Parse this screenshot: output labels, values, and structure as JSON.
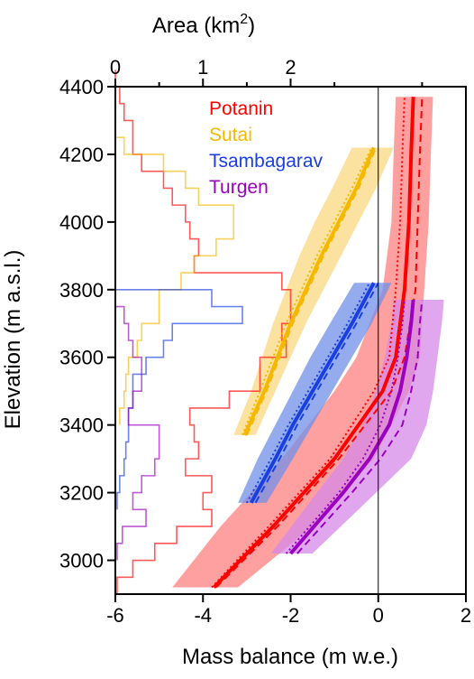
{
  "chart_data": {
    "type": "line",
    "title": "",
    "xlabel_bottom": "Mass balance (m w.e.)",
    "xlabel_top_text": "Area (km",
    "xlabel_top_sup": "2",
    "xlabel_top_close": ")",
    "ylabel": "Elevation (m a.s.l.)",
    "xlim_bottom": [
      -6,
      2
    ],
    "xlim_top": [
      0,
      4
    ],
    "ylim": [
      2900,
      4400
    ],
    "x_ticks_bottom": [
      -6,
      -4,
      -2,
      0,
      2
    ],
    "x_tick_labels_bottom": [
      "-6",
      "-4",
      "-2",
      "0",
      "2"
    ],
    "x_ticks_top": [
      0,
      1,
      2
    ],
    "x_tick_labels_top": [
      "0",
      "1",
      "2"
    ],
    "y_ticks": [
      3000,
      3200,
      3400,
      3600,
      3800,
      4000,
      4200,
      4400
    ],
    "y_tick_labels": [
      "3000",
      "3200",
      "3400",
      "3600",
      "3800",
      "4000",
      "4200",
      "4400"
    ],
    "zero_line_x": 0,
    "legend_position": "top-center",
    "series": [
      {
        "name": "Potanin",
        "color": "#ff0000",
        "band_color": "#ff8080",
        "elevation": [
          2920,
          3100,
          3300,
          3500,
          3600,
          3800,
          4000,
          4200,
          4370
        ],
        "mass_balance": [
          -3.75,
          -2.4,
          -1.0,
          0.1,
          0.4,
          0.6,
          0.7,
          0.75,
          0.8
        ],
        "band_lower": [
          -4.7,
          -3.6,
          -2.2,
          -1.0,
          -0.5,
          0.1,
          0.3,
          0.35,
          0.4
        ],
        "band_upper": [
          -3.2,
          -1.5,
          -0.1,
          0.7,
          0.95,
          1.05,
          1.15,
          1.2,
          1.25
        ],
        "dashed": [
          -3.7,
          -2.3,
          -0.9,
          0.3,
          0.6,
          0.85,
          0.9,
          0.95,
          1.0
        ],
        "dotted": [
          -3.8,
          -2.5,
          -1.1,
          -0.1,
          0.25,
          0.4,
          0.5,
          0.55,
          0.6
        ],
        "area_elevation": [
          2900,
          2950,
          3000,
          3050,
          3100,
          3150,
          3200,
          3250,
          3300,
          3350,
          3400,
          3450,
          3500,
          3550,
          3600,
          3650,
          3700,
          3750,
          3800,
          3850,
          3900,
          3950,
          4000,
          4050,
          4100,
          4150,
          4200,
          4250,
          4300,
          4350,
          4400
        ],
        "area_km2": [
          0.02,
          0.2,
          0.45,
          0.7,
          1.1,
          1.0,
          1.1,
          0.8,
          0.95,
          0.9,
          0.85,
          1.3,
          1.65,
          1.65,
          1.95,
          1.9,
          2.0,
          2.0,
          1.9,
          0.9,
          0.95,
          0.85,
          0.8,
          0.65,
          0.55,
          0.3,
          0.2,
          0.2,
          0.1,
          0.05,
          0.0
        ]
      },
      {
        "name": "Sutai",
        "color": "#f5b800",
        "band_color": "#fad880",
        "elevation": [
          3370,
          3500,
          3600,
          3700,
          3800,
          3900,
          4000,
          4100,
          4220
        ],
        "mass_balance": [
          -3.05,
          -2.6,
          -2.3,
          -2.0,
          -1.65,
          -1.3,
          -0.9,
          -0.5,
          -0.1
        ],
        "band_lower": [
          -3.3,
          -2.9,
          -2.65,
          -2.4,
          -2.1,
          -1.8,
          -1.45,
          -1.05,
          -0.6
        ],
        "band_upper": [
          -2.8,
          -2.35,
          -2.0,
          -1.65,
          -1.25,
          -0.85,
          -0.45,
          -0.05,
          0.35
        ],
        "dashed": [
          -3.0,
          -2.55,
          -2.25,
          -1.95,
          -1.6,
          -1.25,
          -0.85,
          -0.45,
          -0.05
        ],
        "dotted": [
          -3.1,
          -2.7,
          -2.4,
          -2.1,
          -1.75,
          -1.4,
          -1.0,
          -0.6,
          -0.15
        ],
        "area_elevation": [
          3400,
          3450,
          3500,
          3550,
          3600,
          3650,
          3700,
          3750,
          3800,
          3850,
          3900,
          3950,
          4000,
          4050,
          4100,
          4150,
          4200,
          4250
        ],
        "area_km2": [
          0.05,
          0.1,
          0.12,
          0.15,
          0.25,
          0.3,
          0.5,
          0.5,
          0.75,
          0.9,
          1.15,
          1.35,
          1.35,
          0.95,
          0.8,
          0.55,
          0.1,
          0.0
        ]
      },
      {
        "name": "Tsambagarav",
        "color": "#1a3fe0",
        "band_color": "#7090e8",
        "elevation": [
          3170,
          3300,
          3400,
          3500,
          3600,
          3700,
          3820
        ],
        "mass_balance": [
          -2.9,
          -2.35,
          -1.95,
          -1.5,
          -1.05,
          -0.6,
          -0.1
        ],
        "band_lower": [
          -3.2,
          -2.75,
          -2.35,
          -1.95,
          -1.55,
          -1.1,
          -0.55
        ],
        "band_upper": [
          -2.55,
          -1.95,
          -1.5,
          -1.05,
          -0.6,
          -0.15,
          0.3
        ],
        "dashed": [
          -2.8,
          -2.25,
          -1.85,
          -1.4,
          -0.95,
          -0.5,
          0.0
        ],
        "dotted": [
          -3.0,
          -2.45,
          -2.05,
          -1.6,
          -1.15,
          -0.7,
          -0.2
        ],
        "area_elevation": [
          3150,
          3200,
          3250,
          3300,
          3350,
          3400,
          3450,
          3500,
          3550,
          3600,
          3650,
          3700,
          3750,
          3800,
          3850
        ],
        "area_km2": [
          0.02,
          0.05,
          0.1,
          0.12,
          0.15,
          0.15,
          0.2,
          0.2,
          0.35,
          0.55,
          0.65,
          1.45,
          1.1,
          0.0,
          0.0
        ]
      },
      {
        "name": "Turgen",
        "color": "#9a00c0",
        "band_color": "#d58ae8",
        "elevation": [
          3020,
          3200,
          3300,
          3400,
          3500,
          3600,
          3700,
          3770
        ],
        "mass_balance": [
          -2.0,
          -0.8,
          -0.2,
          0.25,
          0.5,
          0.65,
          0.75,
          0.8
        ],
        "band_lower": [
          -2.45,
          -1.4,
          -0.8,
          -0.35,
          -0.05,
          0.15,
          0.3,
          0.35
        ],
        "band_upper": [
          -1.5,
          -0.05,
          0.75,
          1.1,
          1.25,
          1.35,
          1.45,
          1.5
        ],
        "dashed": [
          -1.85,
          -0.6,
          0.05,
          0.55,
          0.75,
          0.9,
          0.95,
          1.0
        ],
        "dotted": [
          -2.1,
          -0.9,
          -0.35,
          0.05,
          0.3,
          0.45,
          0.55,
          0.6
        ],
        "area_elevation": [
          3000,
          3050,
          3100,
          3150,
          3200,
          3250,
          3300,
          3350,
          3400,
          3450,
          3500,
          3550,
          3600,
          3650,
          3700,
          3750
        ],
        "area_km2": [
          0.02,
          0.08,
          0.35,
          0.2,
          0.3,
          0.45,
          0.5,
          0.5,
          0.15,
          0.2,
          0.3,
          0.3,
          0.2,
          0.15,
          0.1,
          0.0
        ]
      }
    ]
  }
}
